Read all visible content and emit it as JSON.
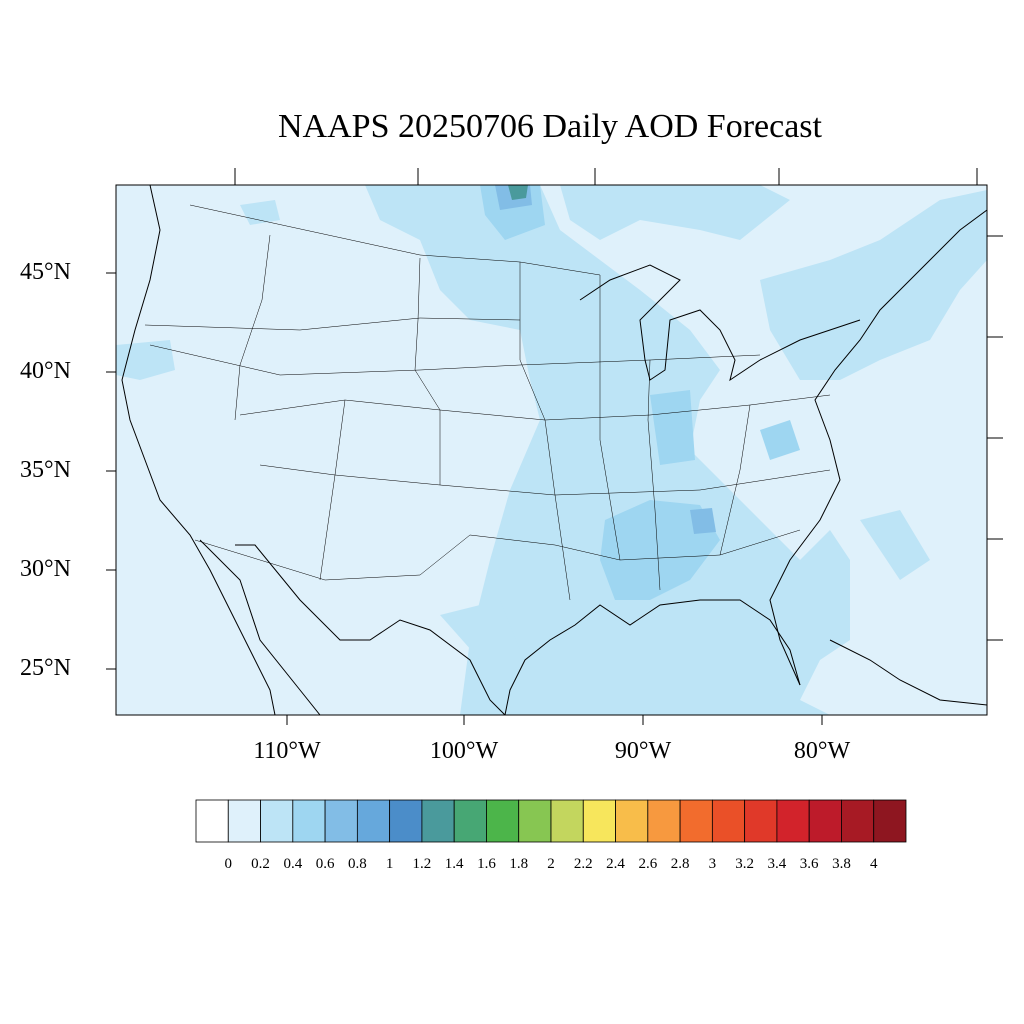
{
  "title": "NAAPS 20250706 Daily AOD Forecast",
  "map": {
    "projection": "Lambert conformal (CONUS)",
    "background_fill": "#dff1fb",
    "lat_labels": [
      "45°N",
      "40°N",
      "35°N",
      "30°N",
      "25°N"
    ],
    "lon_labels": [
      "110°W",
      "100°W",
      "90°W",
      "80°W"
    ]
  },
  "colorbar": {
    "labels": [
      "0",
      "0.2",
      "0.4",
      "0.6",
      "0.8",
      "1",
      "1.2",
      "1.4",
      "1.6",
      "1.8",
      "2",
      "2.2",
      "2.4",
      "2.6",
      "2.8",
      "3",
      "3.2",
      "3.4",
      "3.6",
      "3.8",
      "4"
    ],
    "colors": [
      "#ffffff",
      "#dff1fb",
      "#bde4f6",
      "#9ed6f1",
      "#82bde6",
      "#66a8dc",
      "#4b8dc9",
      "#4a9a9c",
      "#47a774",
      "#4cb54a",
      "#87c652",
      "#c3d65e",
      "#f7e65c",
      "#f8bd4a",
      "#f7993f",
      "#f26c2d",
      "#ea5028",
      "#e03929",
      "#d2232b",
      "#bd1b2a",
      "#a71a24",
      "#8e1620"
    ]
  }
}
